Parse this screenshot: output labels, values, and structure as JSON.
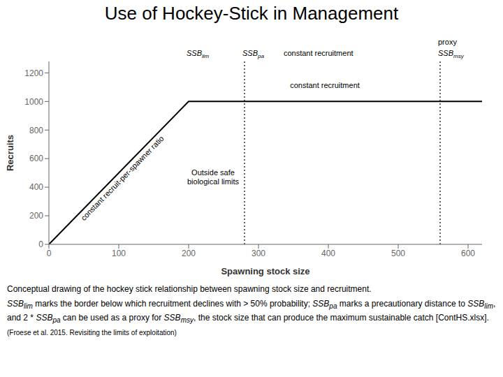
{
  "chart_data": {
    "type": "line",
    "title": "Use of Hockey-Stick in Management",
    "xlabel": "Spawning stock size",
    "ylabel": "Recruits",
    "x": [
      0,
      200,
      620
    ],
    "values": [
      0,
      1000,
      1000
    ],
    "color": "#000000",
    "xlim": [
      0,
      620
    ],
    "ylim": [
      0,
      1280
    ],
    "xticks": [
      0,
      100,
      200,
      300,
      400,
      500,
      600
    ],
    "yticks": [
      0,
      200,
      400,
      600,
      800,
      1000,
      1200
    ],
    "grid": false,
    "vlines": [
      {
        "x": 280,
        "line_style": "dotted",
        "color": "#000000"
      },
      {
        "x": 560,
        "line_style": "dotted",
        "color": "#000000"
      }
    ],
    "annotations": [
      {
        "text": "constant recruit-per-spawner ratio",
        "x": 110,
        "y": 440
      },
      {
        "text": "Outside safe\nbiological limits",
        "x": 235,
        "y": 470
      },
      {
        "text": "constant recruitment",
        "x": 395,
        "y": 1080
      }
    ],
    "top_labels": [
      {
        "x": 200,
        "lines": [
          [
            {
              "text": "SSB",
              "sub": "lim"
            }
          ]
        ]
      },
      {
        "x": 280,
        "lines": [
          [
            {
              "text": "SSB",
              "sub": "pa"
            },
            {
              "text": "constant recruitment"
            }
          ]
        ]
      },
      {
        "x": 560,
        "lines": [
          [
            {
              "text": "proxy"
            }
          ],
          [
            {
              "text": "SSB",
              "sub": "msy"
            }
          ]
        ]
      }
    ],
    "caption": [
      [
        {
          "text": "Conceptual drawing of the hockey stick relationship between spawning stock size and recruitment."
        }
      ],
      [
        {
          "text": "SSB",
          "sub": "lim"
        },
        {
          "text": " marks the border below which recruitment declines with > 50% probability; "
        },
        {
          "text": "SSB",
          "sub": "pa"
        },
        {
          "text": " marks a precautionary distance to "
        },
        {
          "text": "SSB",
          "sub": "lim"
        },
        {
          "text": ", and 2 * "
        },
        {
          "text": "SSB",
          "sub": "pa"
        },
        {
          "text": " can be used as a proxy for "
        },
        {
          "text": "SSB",
          "sub": "msy"
        },
        {
          "text": ", the stock size that can produce the maximum sustainable catch [ContHS.xlsx]. "
        }
      ]
    ],
    "source": "(Froese et al. 2015. Revisiting the limits of exploitation)"
  }
}
